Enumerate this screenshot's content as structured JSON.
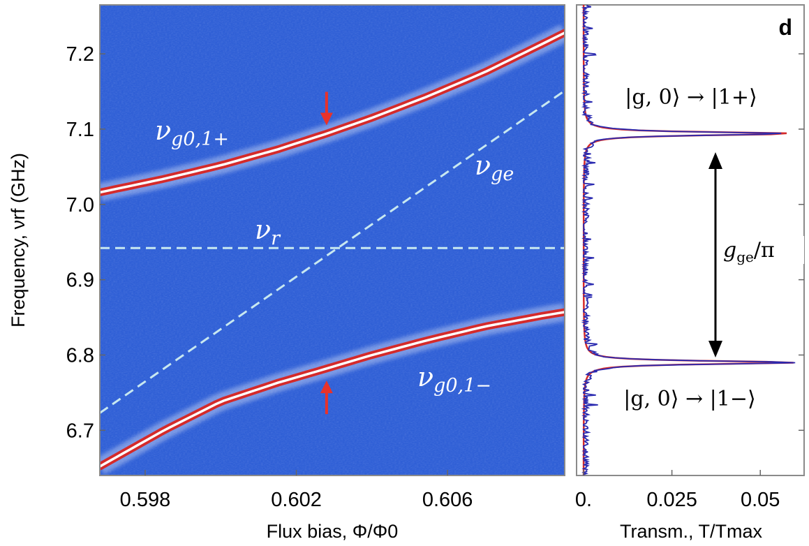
{
  "chart_data": [
    {
      "type": "heatmap",
      "panel": "left",
      "xlabel": "Flux bias, Φ/Φ0",
      "ylabel": "Frequency, νrf (GHz)",
      "xlim": [
        0.5968,
        0.6091
      ],
      "ylim": [
        6.64,
        7.265
      ],
      "x_ticks": [
        "0.598",
        "0.602",
        "0.606"
      ],
      "y_ticks": [
        "7.2",
        "7.1",
        "7.0",
        "6.9",
        "6.8",
        "6.7"
      ],
      "colors": {
        "background": "#2f5fd6",
        "peak": "#d42a2a",
        "fit": "#ffffff",
        "dashed": "#c8e8f0",
        "arrow": "#e8322a"
      },
      "series": [
        {
          "name": "νg0,1+",
          "x": [
            0.5968,
            0.5985,
            0.6,
            0.6015,
            0.6028,
            0.604,
            0.6055,
            0.607,
            0.6085,
            0.6091
          ],
          "y": [
            7.016,
            7.034,
            7.052,
            7.073,
            7.094,
            7.115,
            7.144,
            7.176,
            7.213,
            7.228
          ]
        },
        {
          "name": "νg0,1−",
          "x": [
            0.5968,
            0.5985,
            0.6,
            0.6015,
            0.6028,
            0.604,
            0.6055,
            0.607,
            0.6085,
            0.6091
          ],
          "y": [
            6.652,
            6.7,
            6.738,
            6.763,
            6.782,
            6.8,
            6.82,
            6.838,
            6.852,
            6.857
          ]
        },
        {
          "name": "νr",
          "style": "dashed",
          "x": [
            0.5968,
            0.6091
          ],
          "y": [
            6.942,
            6.942
          ]
        },
        {
          "name": "νge",
          "style": "dashed",
          "x": [
            0.5968,
            0.6091
          ],
          "y": [
            6.723,
            7.151
          ]
        }
      ],
      "markers": [
        {
          "direction": "down",
          "x": 0.6028,
          "y": 7.105
        },
        {
          "direction": "up",
          "x": 0.6028,
          "y": 6.766
        }
      ],
      "annotations": {
        "upper": {
          "sym": "ν",
          "sub": "g0,1+"
        },
        "lower": {
          "sym": "ν",
          "sub": "g0,1−"
        },
        "res": {
          "sym": "ν",
          "sub": "r"
        },
        "qubit": {
          "sym": "ν",
          "sub": "ge"
        }
      }
    },
    {
      "type": "line",
      "panel": "right",
      "panel_label": "d",
      "xlabel": "Transm., T/Tmax",
      "xlim": [
        0,
        0.062
      ],
      "ylim": [
        6.64,
        7.265
      ],
      "x_ticks": [
        "0.",
        "0.025",
        "0.05"
      ],
      "peaks": [
        {
          "frequency": 7.094,
          "data_peak": 0.057,
          "fit_peak": 0.059,
          "label": "|g, 0⟩ → |1+⟩"
        },
        {
          "frequency": 6.79,
          "data_peak": 0.061,
          "fit_peak": 0.06,
          "label": "|g, 0⟩ → |1−⟩"
        }
      ],
      "series": [
        {
          "name": "data",
          "color": "#2a2ab0"
        },
        {
          "name": "fit",
          "color": "#d42a2a"
        }
      ],
      "splitting_label": {
        "sym": "g",
        "sub": "ge",
        "tail": "/π"
      }
    }
  ]
}
